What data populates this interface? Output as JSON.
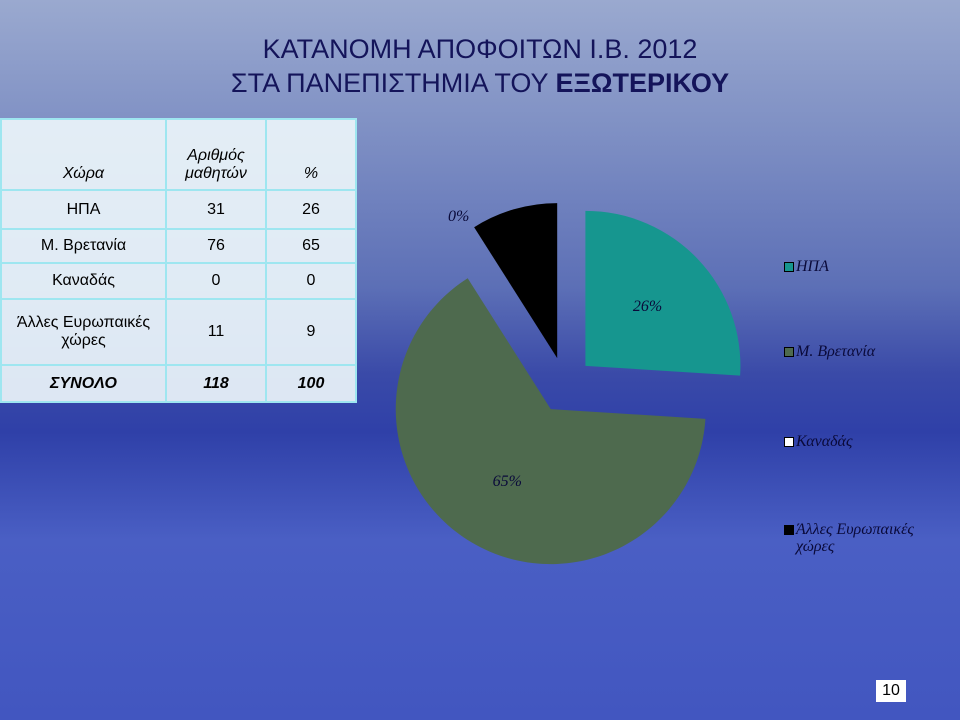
{
  "title": [
    "ΚΑΤΑΝΟΜΗ ΑΠΟΦΟΙΤΩΝ Ι.Β. 2012",
    "ΣΤΑ ΠΑΝΕΠΙΣΤΗΜΙΑ ΤΟΥ",
    "ΕΞΩΤΕΡΙΚΟΥ"
  ],
  "table": {
    "header": [
      "Χώρα",
      "Αριθμός μαθητών",
      "%"
    ],
    "rows": [
      [
        "ΗΠΑ",
        31,
        26
      ],
      [
        "Μ. Βρετανία",
        76,
        65
      ],
      [
        "Καναδάς",
        0,
        0
      ],
      [
        "Άλλες Ευρωπαικές χώρες",
        11,
        9
      ]
    ],
    "total": [
      "ΣΥΝΟΛΟ",
      118,
      100
    ]
  },
  "chart_data": {
    "type": "pie",
    "categories": [
      "ΗΠΑ",
      "Μ. Βρετανία",
      "Καναδάς",
      "Άλλες Ευρωπαικές χώρες"
    ],
    "values": [
      26,
      65,
      0,
      9
    ],
    "value_labels": [
      "26%",
      "65%",
      "0%",
      null
    ],
    "colors": [
      "#16968f",
      "#4e6a4e",
      "#ffffff",
      "#000000"
    ],
    "legend": "right"
  },
  "page_number": 10
}
